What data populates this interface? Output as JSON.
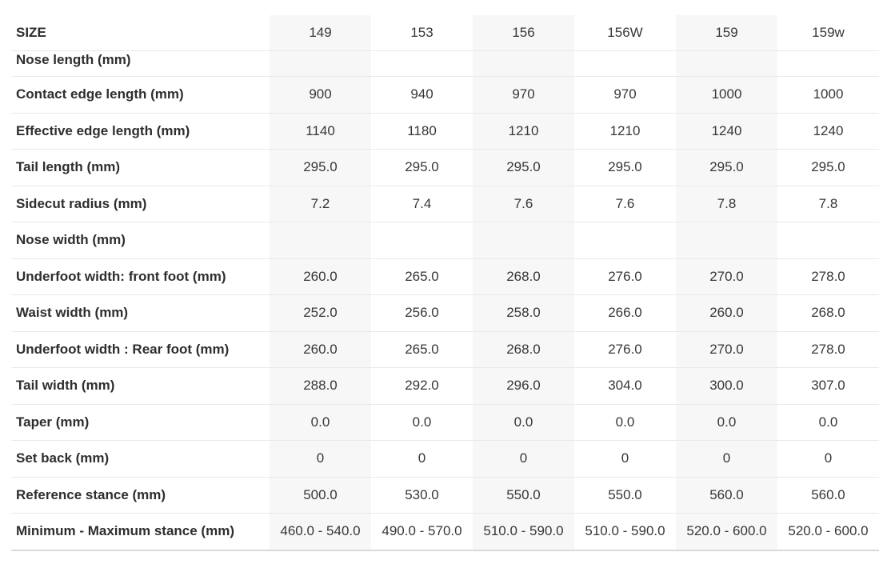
{
  "page": {
    "background": "#ffffff"
  },
  "table": {
    "header": {
      "label": "SIZE",
      "columns": [
        "149",
        "153",
        "156",
        "156W",
        "159",
        "159w"
      ]
    },
    "rows": [
      {
        "label": "Nose length (mm)",
        "values": [
          "",
          "",
          "",
          "",
          "",
          ""
        ]
      },
      {
        "label": "Contact edge length (mm)",
        "values": [
          "900",
          "940",
          "970",
          "970",
          "1000",
          "1000"
        ]
      },
      {
        "label": "Effective edge length (mm)",
        "values": [
          "1140",
          "1180",
          "1210",
          "1210",
          "1240",
          "1240"
        ]
      },
      {
        "label": "Tail length (mm)",
        "values": [
          "295.0",
          "295.0",
          "295.0",
          "295.0",
          "295.0",
          "295.0"
        ]
      },
      {
        "label": "Sidecut radius (mm)",
        "values": [
          "7.2",
          "7.4",
          "7.6",
          "7.6",
          "7.8",
          "7.8"
        ]
      },
      {
        "label": "Nose width (mm)",
        "values": [
          "",
          "",
          "",
          "",
          "",
          ""
        ]
      },
      {
        "label": "Underfoot width: front foot (mm)",
        "values": [
          "260.0",
          "265.0",
          "268.0",
          "276.0",
          "270.0",
          "278.0"
        ]
      },
      {
        "label": "Waist width (mm)",
        "values": [
          "252.0",
          "256.0",
          "258.0",
          "266.0",
          "260.0",
          "268.0"
        ]
      },
      {
        "label": "Underfoot width : Rear foot (mm)",
        "values": [
          "260.0",
          "265.0",
          "268.0",
          "276.0",
          "270.0",
          "278.0"
        ]
      },
      {
        "label": "Tail width (mm)",
        "values": [
          "288.0",
          "292.0",
          "296.0",
          "304.0",
          "300.0",
          "307.0"
        ]
      },
      {
        "label": "Taper (mm)",
        "values": [
          "0.0",
          "0.0",
          "0.0",
          "0.0",
          "0.0",
          "0.0"
        ]
      },
      {
        "label": "Set back (mm)",
        "values": [
          "0",
          "0",
          "0",
          "0",
          "0",
          "0"
        ]
      },
      {
        "label": "Reference stance (mm)",
        "values": [
          "500.0",
          "530.0",
          "550.0",
          "550.0",
          "560.0",
          "560.0"
        ]
      },
      {
        "label": "Minimum - Maximum stance (mm)",
        "values": [
          "460.0 - 540.0",
          "490.0 - 570.0",
          "510.0 - 590.0",
          "510.0 - 590.0",
          "520.0 - 600.0",
          "520.0 - 600.0"
        ]
      }
    ],
    "striped_column_indexes": [
      0,
      2,
      4
    ],
    "colors": {
      "stripe": "#f7f7f7",
      "separator": "#e9e9e9",
      "bottom_border": "#dadada",
      "label_text": "#2e2e2e",
      "value_text": "#373737"
    }
  }
}
